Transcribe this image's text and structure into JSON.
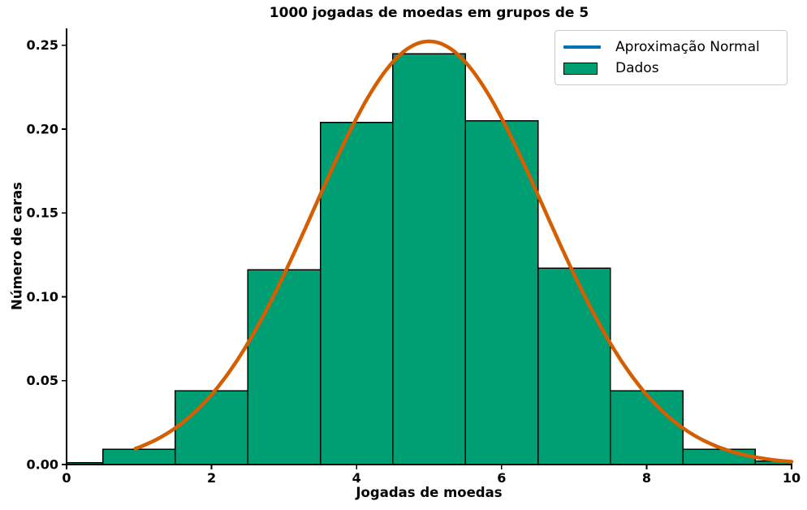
{
  "figure": {
    "background": "#ffffff"
  },
  "chart_data": {
    "type": "bar",
    "subtype": "histogram_with_normal_curve",
    "title": "1000 jogadas de moedas em grupos de 5",
    "xlabel": "Jogadas de moedas",
    "ylabel": "Número de caras",
    "xlim": [
      0,
      10
    ],
    "ylim": [
      0,
      0.26
    ],
    "grid": false,
    "xticks": {
      "values": [
        0,
        2,
        4,
        6,
        8,
        10
      ],
      "labels": [
        "0",
        "2",
        "4",
        "6",
        "8",
        "10"
      ]
    },
    "yticks": {
      "values": [
        0,
        0.05,
        0.1,
        0.15,
        0.2,
        0.25
      ],
      "labels": [
        "0.00",
        "0.05",
        "0.10",
        "0.15",
        "0.20",
        "0.25"
      ]
    },
    "bars": {
      "bin_centers": [
        0,
        1,
        2,
        3,
        4,
        5,
        6,
        7,
        8,
        9,
        10
      ],
      "bin_width": 1,
      "heights": [
        0.001,
        0.009,
        0.044,
        0.116,
        0.204,
        0.245,
        0.205,
        0.117,
        0.044,
        0.009,
        0.002
      ]
    },
    "curve": {
      "distribution": "normal",
      "mean": 5,
      "sigma": 1.5811,
      "peak": 0.2523,
      "x_start": 0.95,
      "x_end": 10
    },
    "legend": {
      "position": "upper right",
      "items": [
        {
          "label": "Aproximação Normal",
          "swatch": "line",
          "color": "#0072B2"
        },
        {
          "label": "Dados",
          "swatch": "patch",
          "color": "#009E73"
        }
      ]
    },
    "colors": {
      "bars": "#009E73",
      "bar_edge": "#000000",
      "curve": "#D55E00",
      "legend_line": "#0072B2",
      "axis": "#000000",
      "legend_border": "#cccccc"
    }
  }
}
